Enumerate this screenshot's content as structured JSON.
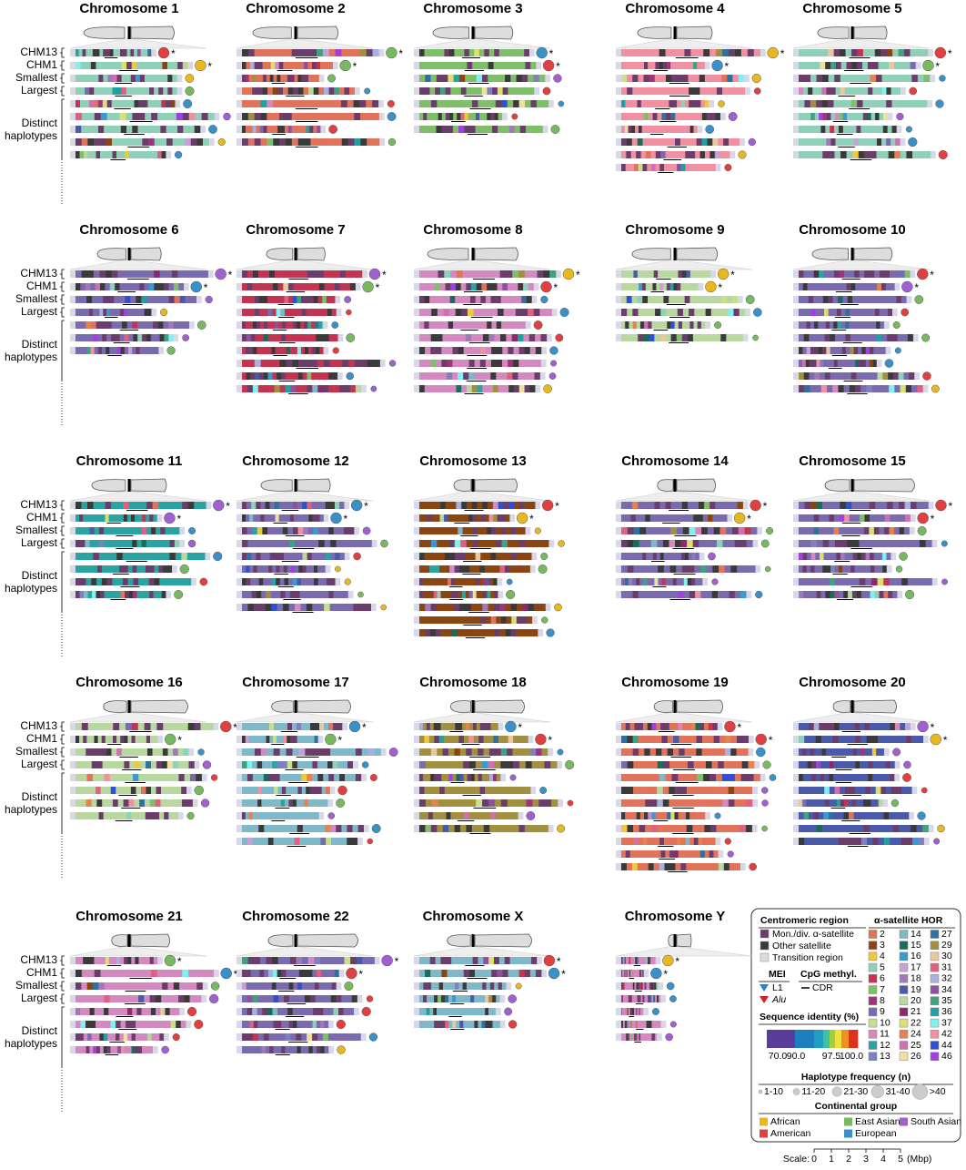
{
  "chromosomes": [
    "Chromosome 1",
    "Chromosome 2",
    "Chromosome 3",
    "Chromosome 4",
    "Chromosome 5",
    "Chromosome 6",
    "Chromosome 7",
    "Chromosome 8",
    "Chromosome 9",
    "Chromosome 10",
    "Chromosome 11",
    "Chromosome 12",
    "Chromosome 13",
    "Chromosome 14",
    "Chromosome 15",
    "Chromosome 16",
    "Chromosome 17",
    "Chromosome 18",
    "Chromosome 19",
    "Chromosome 20",
    "Chromosome 21",
    "Chromosome 22",
    "Chromosome X",
    "Chromosome Y"
  ],
  "row_labels": {
    "chm13": "CHM13",
    "chm1": "CHM1",
    "smallest": "Smallest",
    "largest": "Largest",
    "distinct": "Distinct haplotypes"
  },
  "asterisk": "*",
  "legend": {
    "centromeric_region": {
      "title": "Centromeric region",
      "items": [
        "Mon./div. α-satellite",
        "Other satellite",
        "Transition region"
      ],
      "colors": [
        "#6b3d6b",
        "#3a3a3a",
        "#dcdcdc"
      ]
    },
    "hor": {
      "title": "α-satellite HOR",
      "items": [
        "2",
        "3",
        "4",
        "5",
        "6",
        "7",
        "8",
        "9",
        "10",
        "11",
        "12",
        "13",
        "14",
        "15",
        "16",
        "17",
        "18",
        "19",
        "20",
        "21",
        "22",
        "24",
        "25",
        "26",
        "27",
        "29",
        "30",
        "31",
        "32",
        "34",
        "35",
        "36",
        "37",
        "42",
        "44",
        "46"
      ],
      "colors": [
        "#e0735a",
        "#8b4513",
        "#f0c83c",
        "#8fd0b8",
        "#c4334f",
        "#7fbf6a",
        "#a03478",
        "#7a6bb0",
        "#c8e08a",
        "#d48ac0",
        "#2ca3a3",
        "#8080c0",
        "#7fb8c8",
        "#1a6b5a",
        "#3a9ad0",
        "#c8a0d8",
        "#a07ab8",
        "#4a5aa8",
        "#b8d8a0",
        "#8a2a6a",
        "#d8e070",
        "#e88050",
        "#d070b0",
        "#f0e0a0",
        "#3070a0",
        "#a09040",
        "#e8c8a0",
        "#e06080",
        "#a8b0e0",
        "#9050a0",
        "#40a080",
        "#20a0a0",
        "#80f0f0",
        "#f090a0",
        "#3050d0",
        "#a040e0"
      ]
    },
    "mei": {
      "title": "MEI",
      "items": [
        "L1",
        "Alu"
      ]
    },
    "cpg": {
      "title": "CpG methyl.",
      "items": [
        "CDR"
      ]
    },
    "identity": {
      "title": "Sequence identity (%)",
      "ticks": [
        "70.0",
        "90.0",
        "97.5",
        "100.0"
      ]
    },
    "frequency": {
      "title": "Haplotype frequency (n)",
      "items": [
        "1-10",
        "11-20",
        "21-30",
        "31-40",
        ">40"
      ]
    },
    "continental": {
      "title": "Continental group",
      "items": [
        "African",
        "East Asian",
        "South Asian",
        "American",
        "European"
      ],
      "colors": [
        "#e8b820",
        "#78b860",
        "#a060d0",
        "#e04040",
        "#3a90c8"
      ]
    }
  },
  "scale": {
    "label": "Scale:",
    "ticks": [
      "0",
      "1",
      "2",
      "3",
      "4",
      "5"
    ],
    "unit": "(Mbp)"
  }
}
